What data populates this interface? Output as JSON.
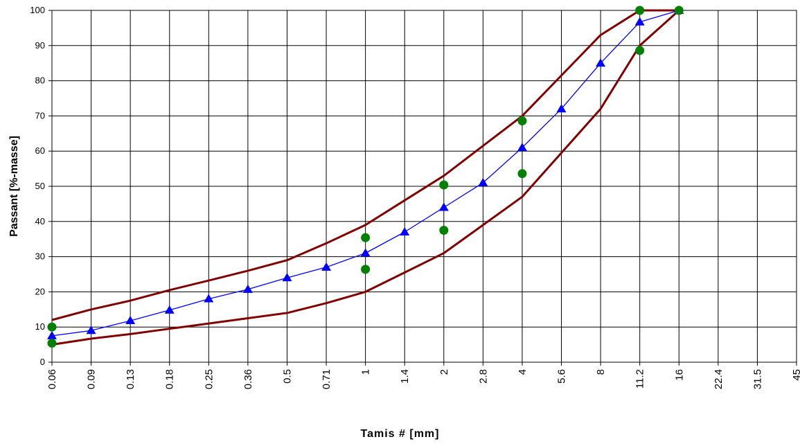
{
  "chart_data": {
    "type": "line",
    "xlabel": "Tamis # [mm]",
    "ylabel": "Passant [%-masse]",
    "categories": [
      "0.06",
      "0.09",
      "0.13",
      "0.18",
      "0.25",
      "0.36",
      "0.5",
      "0.71",
      "1",
      "1.4",
      "2",
      "2.8",
      "4",
      "5.6",
      "8",
      "11.2",
      "16",
      "22.4",
      "31.5",
      "45"
    ],
    "ylim": [
      0,
      100
    ],
    "yticks": [
      0,
      10,
      20,
      30,
      40,
      50,
      60,
      70,
      80,
      90,
      100
    ],
    "grid": true,
    "legend": "none",
    "series": [
      {
        "style": "line",
        "color": "#800000",
        "points": [
          [
            0,
            12
          ],
          [
            1,
            15
          ],
          [
            2,
            17.5
          ],
          [
            3,
            20.5
          ],
          [
            4,
            23.2
          ],
          [
            5,
            26
          ],
          [
            6,
            29
          ],
          [
            7,
            33.8
          ],
          [
            8,
            39
          ],
          [
            9,
            46
          ],
          [
            10,
            53
          ],
          [
            11,
            61.5
          ],
          [
            12,
            70
          ],
          [
            13,
            81.5
          ],
          [
            14,
            93
          ],
          [
            15,
            100
          ],
          [
            16,
            100
          ]
        ]
      },
      {
        "style": "line",
        "color": "#800000",
        "points": [
          [
            0,
            5
          ],
          [
            1,
            6.7
          ],
          [
            2,
            8
          ],
          [
            3,
            9.5
          ],
          [
            4,
            11
          ],
          [
            5,
            12.5
          ],
          [
            6,
            14
          ],
          [
            7,
            16.8
          ],
          [
            8,
            20
          ],
          [
            9,
            25.5
          ],
          [
            10,
            31
          ],
          [
            11,
            39
          ],
          [
            12,
            47
          ],
          [
            13,
            59.5
          ],
          [
            14,
            72
          ],
          [
            15,
            90
          ],
          [
            16,
            100
          ]
        ]
      },
      {
        "style": "line-triangle",
        "color": "#0000FF",
        "points": [
          [
            0,
            7.5
          ],
          [
            1,
            9
          ],
          [
            2,
            11.8
          ],
          [
            3,
            14.8
          ],
          [
            4,
            18
          ],
          [
            5,
            20.7
          ],
          [
            6,
            24
          ],
          [
            7,
            27
          ],
          [
            8,
            31
          ],
          [
            9,
            37
          ],
          [
            10,
            44
          ],
          [
            11,
            51
          ],
          [
            12,
            61
          ],
          [
            13,
            72
          ],
          [
            14,
            85
          ],
          [
            15,
            96.7
          ],
          [
            16,
            100
          ]
        ]
      },
      {
        "style": "points-circle",
        "color": "#008000",
        "points": [
          [
            0,
            10
          ],
          [
            0,
            5.4
          ],
          [
            8,
            35.4
          ],
          [
            8,
            26.4
          ],
          [
            10,
            50.4
          ],
          [
            10,
            37.5
          ],
          [
            12,
            68.6
          ],
          [
            12,
            53.6
          ],
          [
            15,
            100
          ],
          [
            15,
            88.6
          ],
          [
            16,
            100
          ]
        ]
      }
    ]
  }
}
